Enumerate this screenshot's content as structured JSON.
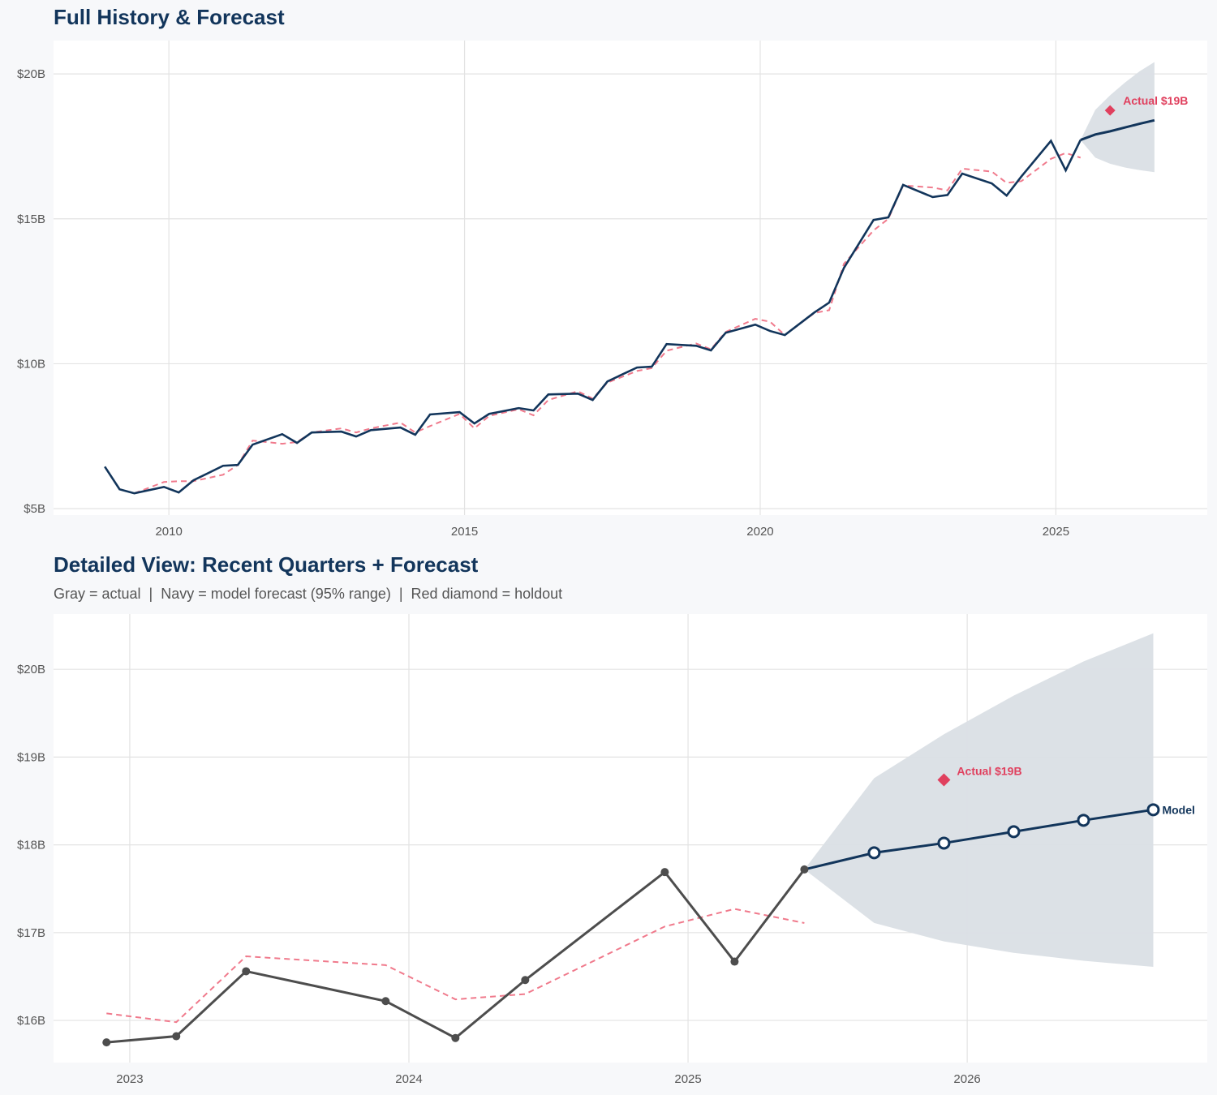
{
  "chart_data": [
    {
      "type": "line",
      "title": "Full History & Forecast",
      "xlim": [
        2008.05,
        2027.56
      ],
      "ylim": [
        4.78,
        21.15
      ],
      "xticks": [
        2010,
        2015,
        2020,
        2025
      ],
      "xtick_labels": [
        "2010",
        "2015",
        "2020",
        "2025"
      ],
      "yticks": [
        5,
        10,
        15,
        20
      ],
      "ytick_labels": [
        "$5B",
        "$10B",
        "$15B",
        "$20B"
      ],
      "grid": true,
      "colors": {
        "actual": "#12355b",
        "fitted": "#f07a8c",
        "forecast": "#12355b",
        "band": "#dadfe5",
        "holdout": "#e0405e"
      },
      "actual": {
        "dates": [
          "2008-12",
          "2009-03",
          "2009-06",
          "2009-12",
          "2010-03",
          "2010-06",
          "2010-12",
          "2011-03",
          "2011-06",
          "2011-12",
          "2012-03",
          "2012-06",
          "2012-12",
          "2013-03",
          "2013-06",
          "2013-12",
          "2014-03",
          "2014-06",
          "2014-12",
          "2015-03",
          "2015-06",
          "2015-12",
          "2016-03",
          "2016-06",
          "2016-12",
          "2017-03",
          "2017-06",
          "2017-12",
          "2018-03",
          "2018-06",
          "2018-12",
          "2019-03",
          "2019-06",
          "2019-12",
          "2020-03",
          "2020-06",
          "2020-12",
          "2021-03",
          "2021-06",
          "2021-12",
          "2022-03",
          "2022-06",
          "2022-12",
          "2023-03",
          "2023-06",
          "2023-12",
          "2024-03",
          "2024-06",
          "2024-12",
          "2025-03",
          "2025-06"
        ],
        "values": [
          6.45,
          5.67,
          5.53,
          5.75,
          5.56,
          5.98,
          6.48,
          6.51,
          7.21,
          7.57,
          7.27,
          7.63,
          7.66,
          7.49,
          7.71,
          7.8,
          7.55,
          8.25,
          8.33,
          7.94,
          8.27,
          8.47,
          8.39,
          8.94,
          8.97,
          8.75,
          9.39,
          9.87,
          9.9,
          10.68,
          10.62,
          10.46,
          11.07,
          11.35,
          11.13,
          10.99,
          11.77,
          12.11,
          13.31,
          14.96,
          15.05,
          16.17,
          15.75,
          15.82,
          16.56,
          16.22,
          15.8,
          16.46,
          17.69,
          16.67,
          17.72
        ]
      },
      "fitted": {
        "dates": [
          "2009-06",
          "2009-12",
          "2010-03",
          "2010-06",
          "2010-12",
          "2011-03",
          "2011-06",
          "2011-12",
          "2012-03",
          "2012-06",
          "2012-12",
          "2013-03",
          "2013-06",
          "2013-12",
          "2014-03",
          "2014-06",
          "2014-12",
          "2015-03",
          "2015-06",
          "2015-12",
          "2016-03",
          "2016-06",
          "2016-12",
          "2017-03",
          "2017-06",
          "2017-12",
          "2018-03",
          "2018-06",
          "2018-12",
          "2019-03",
          "2019-06",
          "2019-12",
          "2020-03",
          "2020-06",
          "2020-12",
          "2021-03",
          "2021-06",
          "2021-12",
          "2022-03",
          "2022-06",
          "2022-12",
          "2023-03",
          "2023-06",
          "2023-12",
          "2024-03",
          "2024-06",
          "2024-12",
          "2025-03",
          "2025-06"
        ],
        "values": [
          5.53,
          5.92,
          5.95,
          5.95,
          6.17,
          6.51,
          7.35,
          7.24,
          7.3,
          7.63,
          7.77,
          7.63,
          7.77,
          7.97,
          7.63,
          7.85,
          8.27,
          7.77,
          8.2,
          8.43,
          8.22,
          8.75,
          9.05,
          8.8,
          9.35,
          9.75,
          9.85,
          10.45,
          10.7,
          10.5,
          11.1,
          11.55,
          11.45,
          10.99,
          11.75,
          11.85,
          13.45,
          14.6,
          15.0,
          16.15,
          16.08,
          15.98,
          16.73,
          16.63,
          16.24,
          16.3,
          17.07,
          17.27,
          17.11
        ]
      },
      "forecast": {
        "dates": [
          "2025-06",
          "2025-09",
          "2025-12",
          "2026-03",
          "2026-06",
          "2026-09"
        ],
        "values": [
          17.72,
          17.91,
          18.02,
          18.15,
          18.28,
          18.4
        ],
        "lower": [
          17.72,
          17.11,
          16.9,
          16.77,
          16.68,
          16.61
        ],
        "upper": [
          17.72,
          18.76,
          19.26,
          19.7,
          20.09,
          20.41
        ]
      },
      "holdout": {
        "date": "2025-12",
        "value": 18.74,
        "label": "Actual $19B"
      }
    },
    {
      "type": "line",
      "title": "Detailed View: Recent Quarters + Forecast",
      "subtitle": "Gray = actual  |  Navy = model forecast (95% range)  |  Red diamond = holdout",
      "xlim": [
        2022.727,
        2026.86
      ],
      "ylim": [
        15.52,
        20.63
      ],
      "xticks": [
        2023,
        2024,
        2025,
        2026
      ],
      "xtick_labels": [
        "2023",
        "2024",
        "2025",
        "2026"
      ],
      "yticks": [
        16,
        17,
        18,
        19,
        20
      ],
      "ytick_labels": [
        "$16B",
        "$17B",
        "$18B",
        "$19B",
        "$20B"
      ],
      "grid": true,
      "colors": {
        "actual": "#4d4d4d",
        "fitted": "#f07a8c",
        "forecast": "#12355b",
        "band": "#dadfe5",
        "holdout": "#e0405e"
      },
      "actual": {
        "dates": [
          "2022-12",
          "2023-03",
          "2023-06",
          "2023-12",
          "2024-03",
          "2024-06",
          "2024-12",
          "2025-03",
          "2025-06"
        ],
        "values": [
          15.75,
          15.82,
          16.56,
          16.22,
          15.8,
          16.46,
          17.69,
          16.67,
          17.72
        ]
      },
      "fitted": {
        "dates": [
          "2022-12",
          "2023-03",
          "2023-06",
          "2023-12",
          "2024-03",
          "2024-06",
          "2024-12",
          "2025-03",
          "2025-06"
        ],
        "values": [
          16.08,
          15.98,
          16.73,
          16.63,
          16.24,
          16.3,
          17.07,
          17.27,
          17.11
        ]
      },
      "forecast": {
        "dates": [
          "2025-06",
          "2025-09",
          "2025-12",
          "2026-03",
          "2026-06",
          "2026-09"
        ],
        "values": [
          17.72,
          17.91,
          18.02,
          18.15,
          18.28,
          18.4
        ],
        "lower": [
          17.72,
          17.11,
          16.9,
          16.77,
          16.68,
          16.61
        ],
        "upper": [
          17.72,
          18.76,
          19.26,
          19.7,
          20.09,
          20.41
        ],
        "label": "Model"
      },
      "holdout": {
        "date": "2025-12",
        "value": 18.74,
        "label": "Actual $19B"
      }
    }
  ]
}
